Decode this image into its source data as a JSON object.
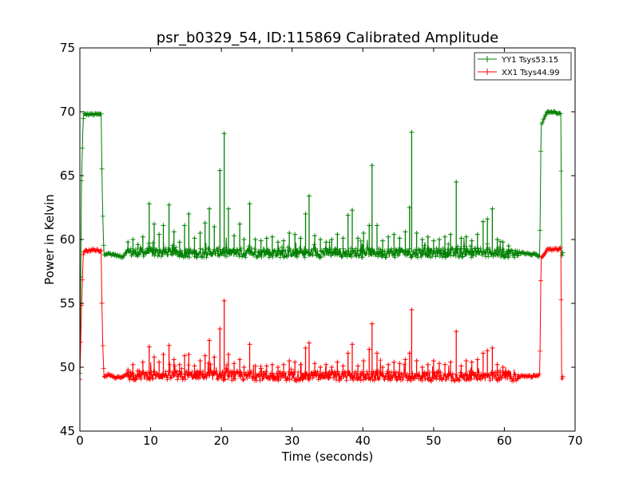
{
  "chart_data": {
    "type": "line",
    "title": "psr_b0329_54, ID:115869 Calibrated Amplitude",
    "xlabel": "Time (seconds)",
    "ylabel": "Power in Kelvin",
    "xlim": [
      0,
      70
    ],
    "ylim": [
      45,
      75
    ],
    "xticks": [
      0,
      10,
      20,
      30,
      40,
      50,
      60,
      70
    ],
    "yticks": [
      45,
      50,
      55,
      60,
      65,
      70,
      75
    ],
    "xtick_labels": [
      "0",
      "10",
      "20",
      "30",
      "40",
      "50",
      "60",
      "70"
    ],
    "ytick_labels": [
      "45",
      "50",
      "55",
      "60",
      "65",
      "70",
      "75"
    ],
    "grid": false,
    "legend_position": "top-right",
    "marker": "plus",
    "series": [
      {
        "name": "YY1 Tsys53.15",
        "color": "#008000",
        "baseline": {
          "x": [
            0,
            0.25,
            0.5,
            1,
            2,
            3,
            3.2,
            3.4,
            4,
            5,
            6,
            6.5,
            62,
            63,
            64.5,
            65,
            65.2,
            66,
            67,
            68,
            68.1,
            68.3
          ],
          "y": [
            49.5,
            65.2,
            69.8,
            69.8,
            69.8,
            69.8,
            62.6,
            58.8,
            58.9,
            58.8,
            58.6,
            59.0,
            59.0,
            58.9,
            58.8,
            58.6,
            69.0,
            70.0,
            70.0,
            69.8,
            58.8,
            58.9
          ]
        },
        "spikes": {
          "x": [
            6.8,
            7.5,
            8.2,
            8.9,
            9.8,
            10.5,
            11.2,
            11.8,
            12.6,
            13.3,
            14.1,
            14.8,
            15.4,
            16.2,
            17.0,
            17.7,
            18.3,
            19.0,
            19.8,
            20.4,
            21.0,
            21.8,
            22.6,
            23.2,
            24.0,
            24.8,
            25.6,
            26.4,
            27.2,
            28.0,
            28.8,
            29.6,
            30.4,
            31.2,
            31.9,
            32.4,
            33.2,
            34.0,
            34.8,
            35.6,
            36.4,
            37.2,
            37.9,
            38.5,
            39.3,
            40.1,
            40.9,
            41.3,
            42.0,
            42.8,
            43.6,
            44.4,
            45.2,
            46.0,
            46.6,
            46.9,
            47.6,
            48.4,
            49.2,
            50.0,
            50.8,
            51.6,
            52.4,
            53.2,
            53.9,
            54.6,
            55.4,
            56.2,
            57.0,
            57.6,
            58.3,
            59.0,
            59.8,
            60.6
          ],
          "y": [
            59.8,
            60.0,
            59.6,
            60.2,
            62.8,
            61.2,
            60.4,
            61.1,
            62.7,
            60.6,
            59.8,
            61.1,
            62.0,
            60.1,
            60.5,
            61.3,
            62.4,
            61.0,
            65.4,
            68.3,
            62.4,
            60.3,
            61.2,
            60.0,
            62.8,
            60.0,
            59.9,
            60.1,
            60.2,
            59.8,
            59.9,
            60.5,
            60.4,
            60.1,
            62.0,
            63.4,
            60.3,
            60.0,
            59.8,
            60.0,
            60.4,
            60.1,
            61.9,
            62.3,
            60.1,
            60.5,
            61.1,
            65.8,
            61.1,
            59.9,
            60.2,
            60.4,
            60.1,
            60.6,
            62.5,
            68.4,
            60.5,
            60.0,
            60.2,
            59.9,
            60.0,
            60.2,
            60.4,
            64.5,
            60.1,
            60.2,
            59.9,
            60.4,
            61.4,
            61.6,
            62.4,
            60.0,
            59.8,
            59.5
          ]
        }
      },
      {
        "name": "XX1 Tsys44.99",
        "color": "#ff0000",
        "baseline": {
          "x": [
            0,
            0.25,
            0.5,
            1,
            2,
            3,
            3.2,
            3.4,
            4,
            5,
            6,
            6.5,
            62,
            63,
            64.5,
            65,
            65.2,
            66,
            67,
            68,
            68.1,
            68.3
          ],
          "y": [
            49.1,
            55.0,
            59.1,
            59.1,
            59.2,
            59.1,
            52.4,
            49.2,
            49.4,
            49.2,
            49.2,
            49.4,
            49.3,
            49.3,
            49.3,
            49.4,
            58.5,
            59.2,
            59.2,
            59.3,
            49.1,
            49.2
          ]
        },
        "spikes": {
          "x": [
            6.8,
            7.5,
            8.2,
            8.9,
            9.8,
            10.5,
            11.2,
            11.8,
            12.6,
            13.3,
            14.1,
            14.8,
            15.4,
            16.2,
            17.0,
            17.7,
            18.3,
            19.0,
            19.8,
            20.4,
            21.0,
            21.8,
            22.6,
            23.2,
            24.0,
            24.8,
            25.6,
            26.4,
            27.2,
            28.0,
            28.8,
            29.6,
            30.4,
            31.2,
            31.9,
            32.4,
            33.2,
            34.0,
            34.8,
            35.6,
            36.4,
            37.2,
            37.9,
            38.5,
            39.3,
            40.1,
            40.9,
            41.3,
            42.0,
            42.8,
            43.6,
            44.4,
            45.2,
            46.0,
            46.6,
            46.9,
            47.6,
            48.4,
            49.2,
            50.0,
            50.8,
            51.6,
            52.4,
            53.2,
            53.9,
            54.6,
            55.4,
            56.2,
            57.0,
            57.6,
            58.3,
            59.0,
            59.8,
            60.6
          ],
          "y": [
            49.8,
            50.2,
            49.7,
            50.4,
            51.6,
            50.8,
            50.4,
            51.0,
            51.7,
            50.6,
            50.2,
            50.9,
            51.0,
            50.1,
            50.5,
            50.9,
            52.1,
            50.8,
            53.0,
            55.2,
            51.0,
            50.3,
            50.6,
            50.0,
            51.8,
            50.1,
            49.9,
            50.1,
            50.2,
            50.0,
            50.2,
            50.5,
            50.4,
            50.2,
            51.5,
            51.9,
            50.3,
            50.0,
            50.2,
            50.0,
            50.4,
            50.1,
            51.1,
            51.8,
            50.1,
            50.5,
            51.4,
            53.4,
            51.1,
            50.0,
            50.2,
            50.4,
            50.3,
            50.6,
            51.1,
            54.5,
            50.5,
            50.0,
            50.2,
            50.5,
            50.3,
            50.2,
            50.4,
            52.8,
            50.1,
            50.5,
            50.4,
            50.6,
            51.1,
            51.3,
            51.5,
            50.2,
            50.0,
            49.6
          ]
        }
      }
    ]
  }
}
